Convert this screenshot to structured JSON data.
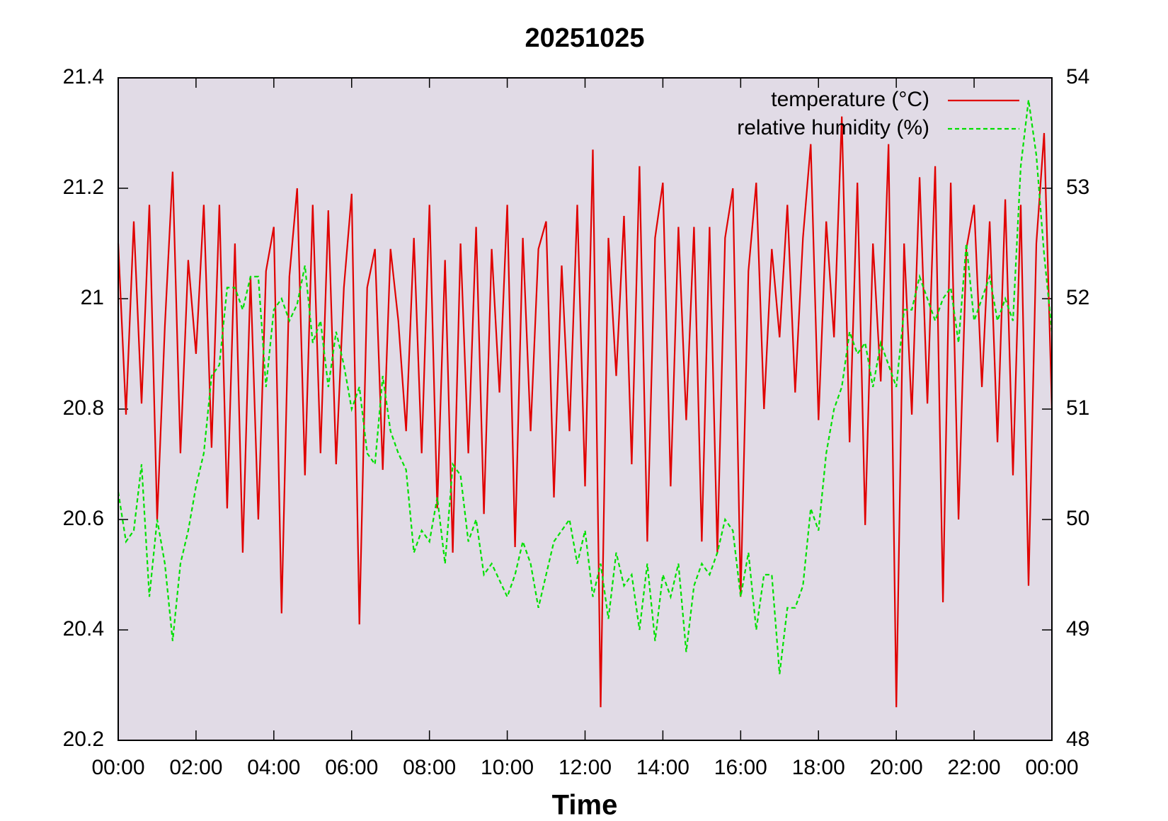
{
  "chart_data": {
    "type": "line",
    "title": "20251025",
    "x_label": "Time",
    "x": [
      0,
      0.2,
      0.4,
      0.6,
      0.8,
      1,
      1.2,
      1.4,
      1.6,
      1.8,
      2,
      2.2,
      2.4,
      2.6,
      2.8,
      3,
      3.2,
      3.4,
      3.6,
      3.8,
      4,
      4.2,
      4.4,
      4.6,
      4.8,
      5,
      5.2,
      5.4,
      5.6,
      5.8,
      6,
      6.2,
      6.4,
      6.6,
      6.8,
      7,
      7.2,
      7.4,
      7.6,
      7.8,
      8,
      8.2,
      8.4,
      8.6,
      8.8,
      9,
      9.2,
      9.4,
      9.6,
      9.8,
      10,
      10.2,
      10.4,
      10.6,
      10.8,
      11,
      11.2,
      11.4,
      11.6,
      11.8,
      12,
      12.2,
      12.4,
      12.6,
      12.8,
      13,
      13.2,
      13.4,
      13.6,
      13.8,
      14,
      14.2,
      14.4,
      14.6,
      14.8,
      15,
      15.2,
      15.4,
      15.6,
      15.8,
      16,
      16.2,
      16.4,
      16.6,
      16.8,
      17,
      17.2,
      17.4,
      17.6,
      17.8,
      18,
      18.2,
      18.4,
      18.6,
      18.8,
      19,
      19.2,
      19.4,
      19.6,
      19.8,
      20,
      20.2,
      20.4,
      20.6,
      20.8,
      21,
      21.2,
      21.4,
      21.6,
      21.8,
      22,
      22.2,
      22.4,
      22.6,
      22.8,
      23,
      23.2,
      23.4,
      23.6,
      23.8,
      24
    ],
    "series": [
      {
        "name": "temperature (°C)",
        "color": "#e00000",
        "dash": false,
        "values": [
          21.1,
          20.79,
          21.14,
          20.81,
          21.17,
          20.6,
          20.95,
          21.23,
          20.72,
          21.07,
          20.9,
          21.17,
          20.73,
          21.17,
          20.62,
          21.1,
          20.54,
          21.04,
          20.6,
          21.05,
          21.13,
          20.43,
          21.04,
          21.2,
          20.68,
          21.17,
          20.72,
          21.16,
          20.7,
          21.02,
          21.19,
          20.41,
          21.02,
          21.09,
          20.69,
          21.09,
          20.96,
          20.76,
          21.11,
          20.72,
          21.17,
          20.62,
          21.07,
          20.54,
          21.1,
          20.72,
          21.13,
          20.61,
          21.09,
          20.83,
          21.17,
          20.55,
          21.11,
          20.76,
          21.09,
          21.14,
          20.64,
          21.06,
          20.76,
          21.17,
          20.66,
          21.27,
          20.26,
          21.11,
          20.86,
          21.15,
          20.7,
          21.24,
          20.56,
          21.11,
          21.21,
          20.66,
          21.13,
          20.78,
          21.13,
          20.56,
          21.13,
          20.54,
          21.11,
          21.2,
          20.46,
          21.05,
          21.21,
          20.8,
          21.09,
          20.93,
          21.17,
          20.83,
          21.11,
          21.28,
          20.78,
          21.14,
          20.93,
          21.33,
          20.74,
          21.21,
          20.59,
          21.1,
          20.85,
          21.28,
          20.26,
          21.1,
          20.79,
          21.22,
          20.81,
          21.24,
          20.45,
          21.21,
          20.6,
          21.09,
          21.17,
          20.84,
          21.14,
          20.74,
          21.18,
          20.68,
          21.17,
          20.48,
          21.1,
          21.3,
          20.8
        ]
      },
      {
        "name": "relative humidity (%)",
        "color": "#00e000",
        "dash": true,
        "axis": "y2",
        "values": [
          50.25,
          49.8,
          49.9,
          50.5,
          49.3,
          50.0,
          49.6,
          48.9,
          49.6,
          49.9,
          50.3,
          50.6,
          51.3,
          51.4,
          52.1,
          52.1,
          51.9,
          52.2,
          52.2,
          51.2,
          51.9,
          52.0,
          51.8,
          51.95,
          52.3,
          51.6,
          51.8,
          51.2,
          51.7,
          51.4,
          51.0,
          51.2,
          50.6,
          50.5,
          51.3,
          50.8,
          50.6,
          50.45,
          49.7,
          49.9,
          49.8,
          50.2,
          49.6,
          50.5,
          50.4,
          49.8,
          50.0,
          49.5,
          49.6,
          49.45,
          49.3,
          49.5,
          49.8,
          49.6,
          49.2,
          49.5,
          49.8,
          49.9,
          50.0,
          49.6,
          49.9,
          49.3,
          49.6,
          49.1,
          49.7,
          49.4,
          49.5,
          49.0,
          49.6,
          48.9,
          49.5,
          49.3,
          49.6,
          48.8,
          49.4,
          49.6,
          49.5,
          49.7,
          50.0,
          49.9,
          49.3,
          49.7,
          49.0,
          49.5,
          49.5,
          48.6,
          49.2,
          49.2,
          49.4,
          50.1,
          49.9,
          50.6,
          51.0,
          51.2,
          51.7,
          51.5,
          51.6,
          51.2,
          51.6,
          51.4,
          51.2,
          51.9,
          51.9,
          52.2,
          52.0,
          51.8,
          52.0,
          52.1,
          51.6,
          52.5,
          51.8,
          52.0,
          52.2,
          51.8,
          52.0,
          51.8,
          53.2,
          53.8,
          53.3,
          52.4,
          51.7
        ]
      }
    ],
    "xlim": [
      0,
      24
    ],
    "xticks": [
      {
        "value": 0,
        "label": "00:00"
      },
      {
        "value": 2,
        "label": "02:00"
      },
      {
        "value": 4,
        "label": "04:00"
      },
      {
        "value": 6,
        "label": "06:00"
      },
      {
        "value": 8,
        "label": "08:00"
      },
      {
        "value": 10,
        "label": "10:00"
      },
      {
        "value": 12,
        "label": "12:00"
      },
      {
        "value": 14,
        "label": "14:00"
      },
      {
        "value": 16,
        "label": "16:00"
      },
      {
        "value": 18,
        "label": "18:00"
      },
      {
        "value": 20,
        "label": "20:00"
      },
      {
        "value": 22,
        "label": "22:00"
      },
      {
        "value": 24,
        "label": "00:00"
      }
    ],
    "ylim": [
      20.2,
      21.4
    ],
    "yticks": [
      20.2,
      20.4,
      20.6,
      20.8,
      21,
      21.2,
      21.4
    ],
    "y2lim": [
      48,
      54
    ],
    "y2ticks": [
      48,
      49,
      50,
      51,
      52,
      53,
      54
    ],
    "legend": "top-right",
    "background": "#e1dbe6"
  }
}
